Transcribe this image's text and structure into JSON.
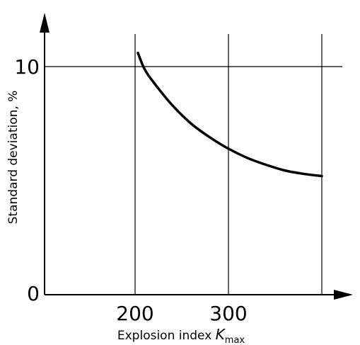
{
  "chart_data": {
    "type": "line",
    "xlabel_main": "Explosion index ",
    "xlabel_var": "K",
    "xlabel_sub": "max",
    "ylabel": "Standard deviation, %",
    "x_ticks": [
      200,
      300
    ],
    "y_ticks": [
      0,
      10
    ],
    "x_tick_labels": [
      "200",
      "300"
    ],
    "y_tick_labels": [
      "0",
      "10"
    ],
    "x_gridlines": [
      200,
      300,
      400
    ],
    "y_gridlines": [
      10
    ],
    "grid": true,
    "xlim": [
      100,
      400
    ],
    "ylim": [
      0,
      10
    ],
    "series": [
      {
        "x": [
          203,
          210,
          220,
          240,
          260,
          280,
          300,
          320,
          340,
          360,
          380,
          400
        ],
        "values": [
          10.6,
          9.9,
          9.3,
          8.3,
          7.5,
          6.9,
          6.4,
          6.0,
          5.7,
          5.45,
          5.3,
          5.2
        ]
      }
    ]
  }
}
